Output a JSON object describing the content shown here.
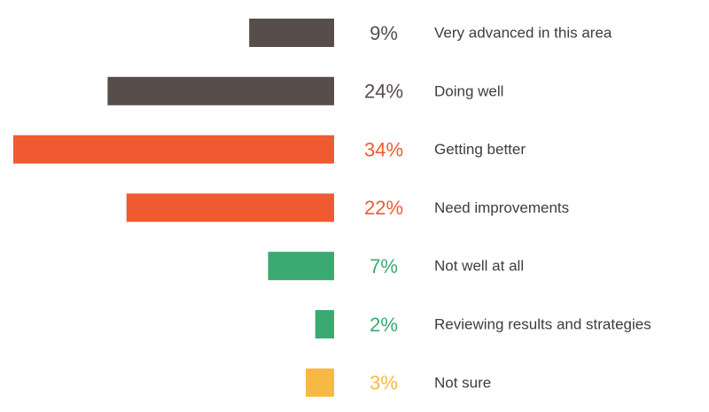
{
  "chart_data": {
    "type": "bar",
    "orientation": "horizontal",
    "categories": [
      "Very advanced in this area",
      "Doing well",
      "Getting better",
      "Need improvements",
      "Not well at all",
      "Reviewing results and strategies",
      "Not sure"
    ],
    "values": [
      9,
      24,
      34,
      22,
      7,
      2,
      3
    ],
    "value_labels": [
      "9%",
      "24%",
      "34%",
      "22%",
      "7%",
      "2%",
      "3%"
    ],
    "colors": [
      "#574d4a",
      "#574d4a",
      "#f05a30",
      "#f05a30",
      "#3aaa72",
      "#3aaa72",
      "#f7b944"
    ]
  }
}
